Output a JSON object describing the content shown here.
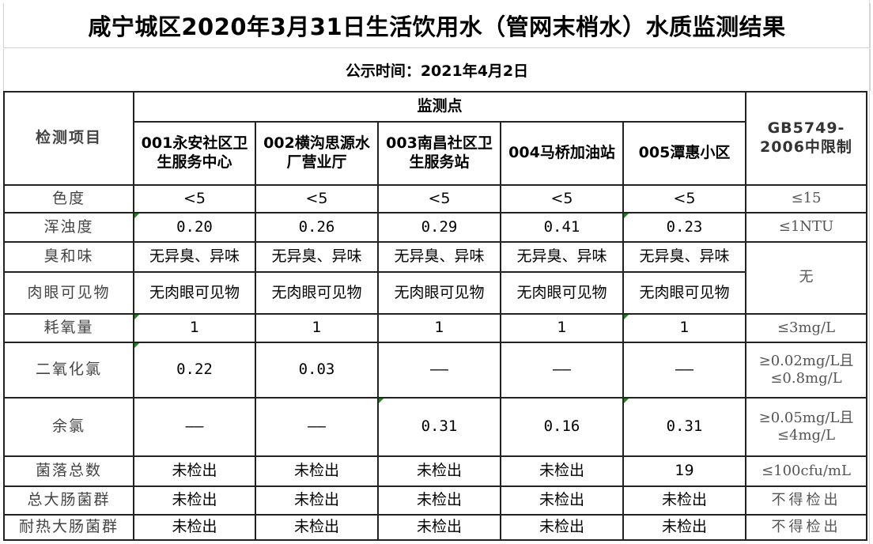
{
  "title": "咸宁城区2020年3月31日生活饮用水（管网末梢水）水质监测结果",
  "subtitle": "公示时间：2021年4月2日",
  "headers": {
    "item": "检测项目",
    "points_group": "监测点",
    "standard": "GB5749-2006中限制",
    "points": [
      "001永安社区卫生服务中心",
      "002横沟思源水厂营业厅",
      "003南昌社区卫生服务站",
      "004马桥加油站",
      "005潭惠小区"
    ]
  },
  "rows": [
    {
      "item": "色度",
      "values": [
        "<5",
        "<5",
        "<5",
        "<5",
        "<5"
      ],
      "standard": "≤15"
    },
    {
      "item": "浑浊度",
      "values": [
        "0.20",
        "0.26",
        "0.29",
        "0.41",
        "0.23"
      ],
      "standard": "≤1NTU"
    },
    {
      "item": "臭和味",
      "values": [
        "无异臭、异味",
        "无异臭、异味",
        "无异臭、异味",
        "无异臭、异味",
        "无异臭、异味"
      ],
      "standard": "无"
    },
    {
      "item": "肉眼可见物",
      "values": [
        "无肉眼可见物",
        "无肉眼可见物",
        "无肉眼可见物",
        "无肉眼可见物",
        "无肉眼可见物"
      ]
    },
    {
      "item": "耗氧量",
      "values": [
        "1",
        "1",
        "1",
        "1",
        "1"
      ],
      "standard": "≤3mg/L"
    },
    {
      "item": "二氧化氯",
      "values": [
        "0.22",
        "0.03",
        "——",
        "——",
        "——"
      ],
      "standard": "≥0.02mg/L且≤0.8mg/L"
    },
    {
      "item": "余氯",
      "values": [
        "——",
        "——",
        "0.31",
        "0.16",
        "0.31"
      ],
      "standard": "≥0.05mg/L且≤4mg/L"
    },
    {
      "item": "菌落总数",
      "values": [
        "未检出",
        "未检出",
        "未检出",
        "未检出",
        "19"
      ],
      "standard": "≤100cfu/mL"
    },
    {
      "item": "总大肠菌群",
      "values": [
        "未检出",
        "未检出",
        "未检出",
        "未检出",
        "未检出"
      ],
      "standard": "不得检出"
    },
    {
      "item": "耐热大肠菌群",
      "values": [
        "未检出",
        "未检出",
        "未检出",
        "未检出",
        "未检出"
      ],
      "standard": "不得检出"
    }
  ]
}
